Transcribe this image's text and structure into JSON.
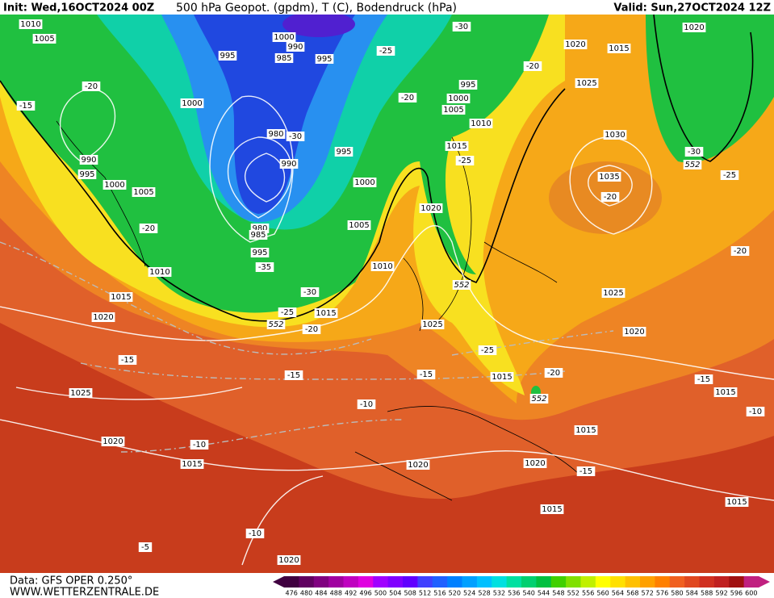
{
  "header": {
    "init": "Init: Wed,16OCT2024 00Z",
    "title": "500 hPa Geopot. (gpdm), T (C), Bodendruck (hPa)",
    "valid": "Valid: Sun,27OCT2024 12Z"
  },
  "footer": {
    "data": "Data: GFS OPER 0.250°",
    "site": "WWW.WETTERZENTRALE.DE"
  },
  "colorbar": {
    "labels": [
      "476",
      "480",
      "484",
      "488",
      "492",
      "496",
      "500",
      "504",
      "508",
      "512",
      "516",
      "520",
      "524",
      "528",
      "532",
      "536",
      "540",
      "544",
      "548",
      "552",
      "556",
      "560",
      "564",
      "568",
      "572",
      "576",
      "580",
      "584",
      "588",
      "592",
      "596",
      "600"
    ],
    "colors": [
      "#400040",
      "#600060",
      "#800080",
      "#a000a0",
      "#c000c0",
      "#e000e0",
      "#a000ff",
      "#8000ff",
      "#6000ff",
      "#4040ff",
      "#2060ff",
      "#0080ff",
      "#00a0ff",
      "#00c0ff",
      "#00e0e0",
      "#00e0a0",
      "#00d070",
      "#00c040",
      "#40d000",
      "#80e000",
      "#c0f000",
      "#ffff00",
      "#ffe000",
      "#ffc000",
      "#ffa000",
      "#ff8000",
      "#f06020",
      "#e04820",
      "#d03020",
      "#c02020",
      "#a01010",
      "#c02080"
    ]
  },
  "map": {
    "labels": [
      "1010",
      "1005",
      "1000",
      "990",
      "995",
      "985",
      "995",
      "-25",
      "-30",
      "-20",
      "1020",
      "1015",
      "1020",
      "-20",
      "-15",
      "1000",
      "995",
      "1000",
      "-20",
      "1005",
      "1025",
      "1010",
      "980",
      "-30",
      "995",
      "1015",
      "1030",
      "990",
      "995",
      "990",
      "-25",
      "-30",
      "552",
      "-25",
      "1000",
      "1005",
      "1000",
      "1035",
      "-20",
      "980",
      "985",
      "1020",
      "-20",
      "1005",
      "995",
      "-20",
      "-35",
      "1010",
      "1010",
      "552",
      "-30",
      "1015",
      "1025",
      "-25",
      "1015",
      "1020",
      "552",
      "-20",
      "1025",
      "1020",
      "-25",
      "-15",
      "-15",
      "-15",
      "-20",
      "1015",
      "-15",
      "1025",
      "552",
      "1015",
      "-10",
      "-10",
      "1015",
      "1020",
      "-10",
      "1015",
      "1020",
      "1020",
      "-15",
      "1015",
      "1015",
      "-10",
      "-5",
      "1020"
    ]
  }
}
